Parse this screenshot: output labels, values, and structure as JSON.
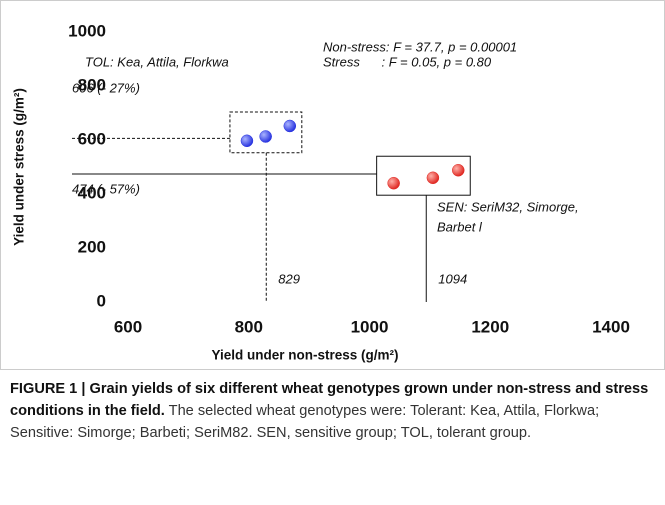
{
  "chart_data": {
    "type": "scatter",
    "xlabel": "Yield under non-stress (g/m²)",
    "ylabel": "Yield under stress (g/m²)",
    "xlim": [
      600,
      1400
    ],
    "xticks": [
      600,
      800,
      1000,
      1200,
      1400
    ],
    "ylim": [
      0,
      1000
    ],
    "yticks": [
      0,
      200,
      400,
      600,
      800,
      1000
    ],
    "series": [
      {
        "color": "#2a35e0",
        "x": [
          797,
          828,
          868
        ],
        "values": [
          597,
          613,
          652
        ]
      },
      {
        "color": "#e02a24",
        "x": [
          1040,
          1105,
          1147
        ],
        "values": [
          440,
          460,
          488
        ]
      }
    ],
    "stats": [
      "Non-stress: F = 37.7, p = 0.00001",
      "Stress      : F = 0.05, p = 0.80"
    ],
    "group_labels": [
      [
        "TOL: Kea, Attila, Florkwa"
      ],
      [
        "SEN: SeriM32, Simorge,",
        "Barbet l"
      ]
    ],
    "hlines": [
      {
        "value": 606,
        "label": "606 (- 27%)",
        "dashed": true
      },
      {
        "value": 474,
        "label": "474 (- 57%)",
        "dashed": false
      }
    ],
    "vlines": [
      {
        "value": 829,
        "label": "829",
        "dashed": true
      },
      {
        "value": 1094,
        "label": "1094",
        "dashed": false
      }
    ]
  },
  "caption": {
    "bold": "FIGURE 1 | Grain yields of six different wheat genotypes grown under non-stress and stress conditions in the field.",
    "text": "The selected wheat genotypes were: Tolerant: Kea, Attila, Florkwa; Sensitive: Simorge; Barbeti; SeriM82. SEN, sensitive group; TOL, tolerant group."
  }
}
